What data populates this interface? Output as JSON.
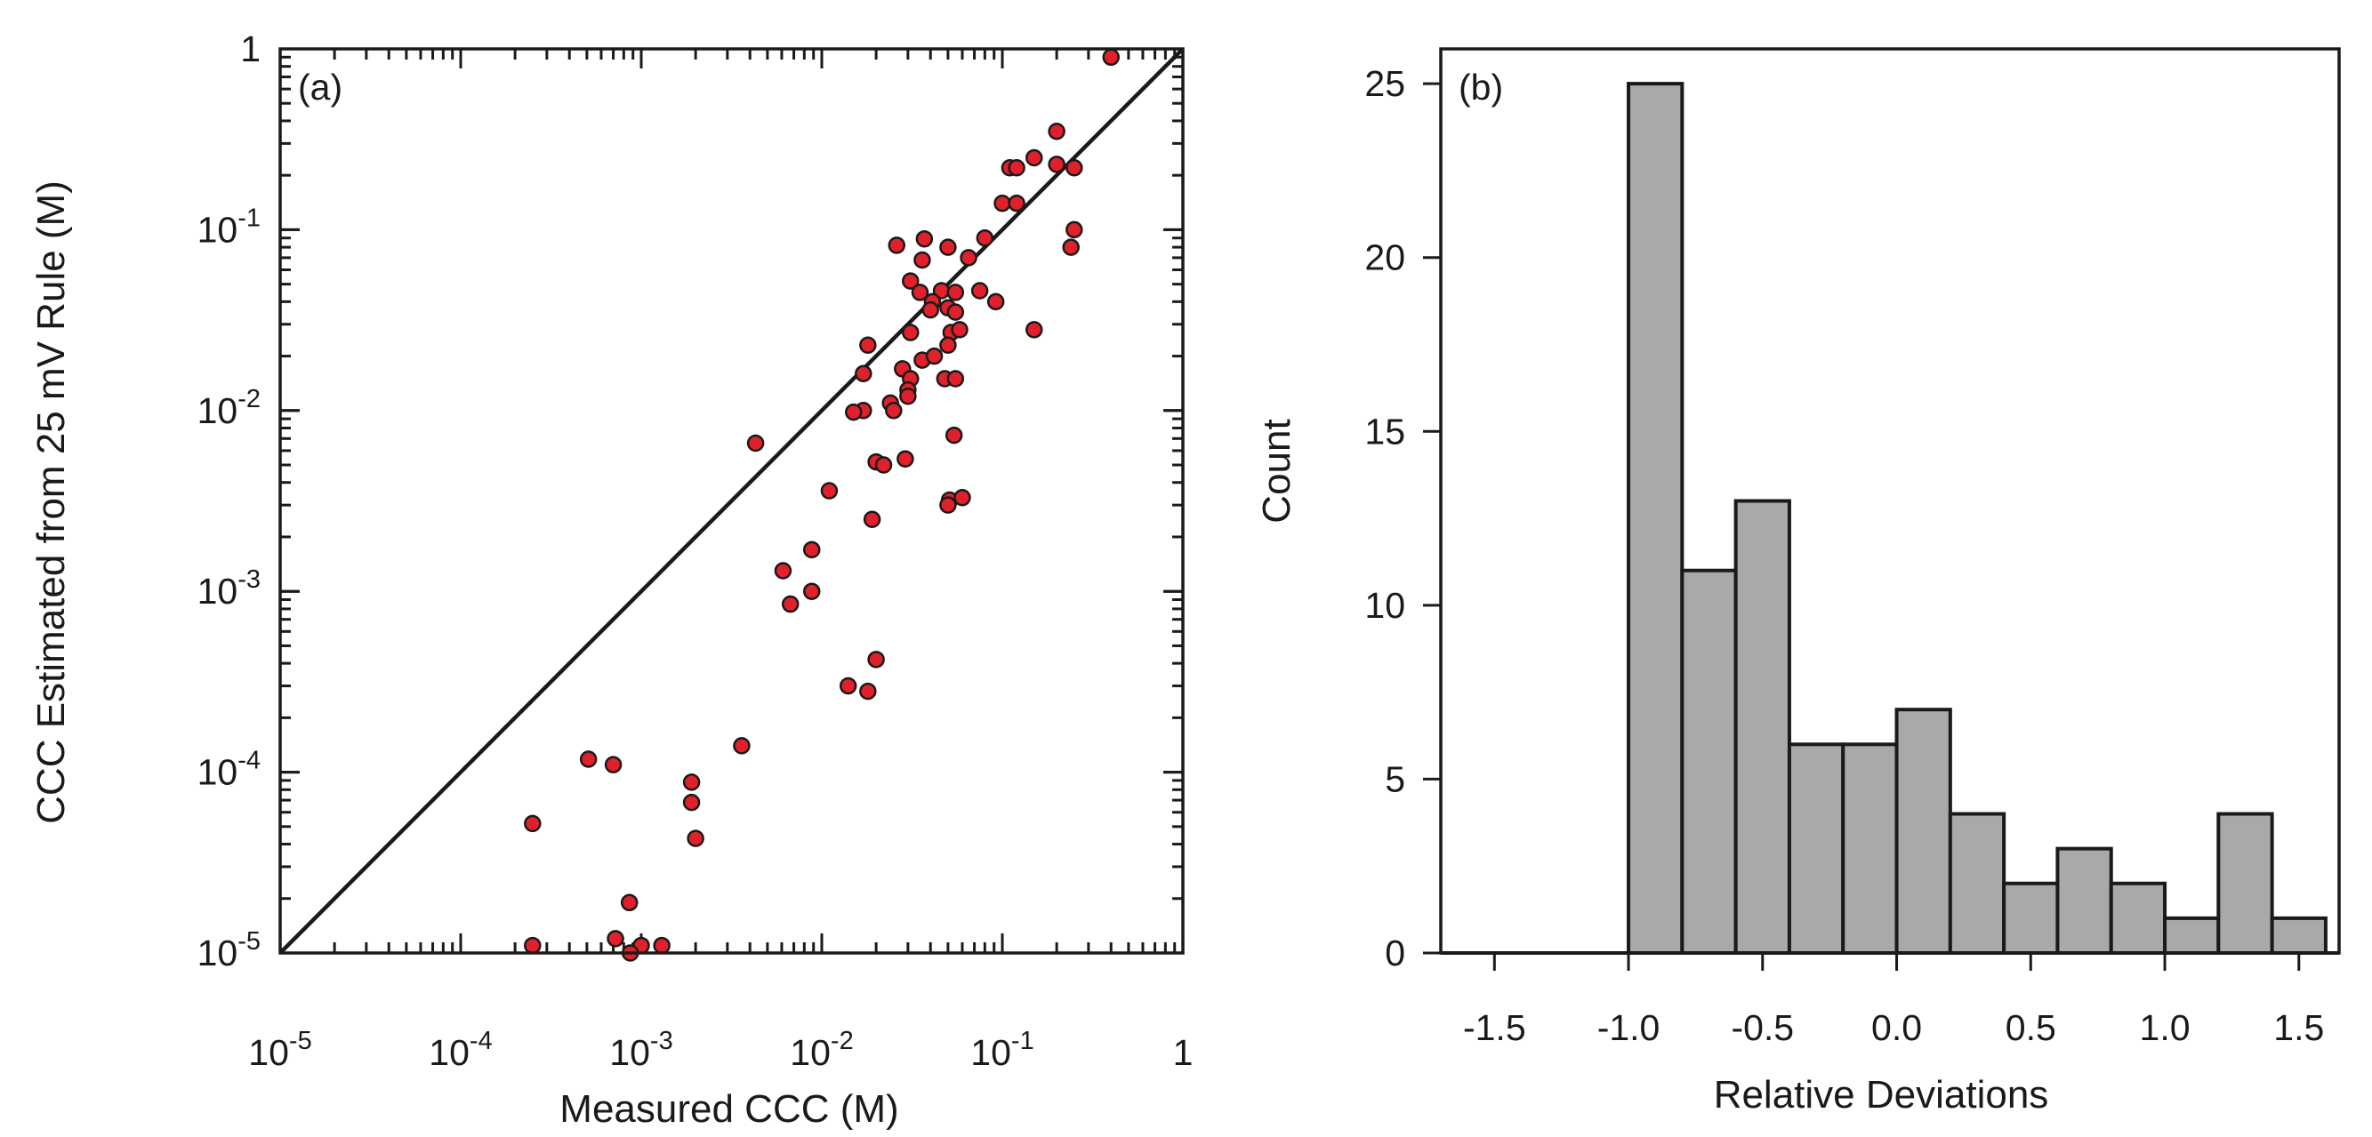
{
  "chart_data": [
    {
      "type": "scatter",
      "panel_label": "(a)",
      "xlabel": "Measured CCC (M)",
      "ylabel": "CCC Estimated from 25 mV Rule (M)",
      "xscale": "log",
      "yscale": "log",
      "xlim": [
        1e-05,
        1
      ],
      "ylim": [
        1e-05,
        1
      ],
      "x_tick_labels": [
        {
          "value": 1e-05,
          "base": "10",
          "exp": "-5"
        },
        {
          "value": 0.0001,
          "base": "10",
          "exp": "-4"
        },
        {
          "value": 0.001,
          "base": "10",
          "exp": "-3"
        },
        {
          "value": 0.01,
          "base": "10",
          "exp": "-2"
        },
        {
          "value": 0.1,
          "base": "10",
          "exp": "-1"
        },
        {
          "value": 1,
          "base": "1",
          "exp": ""
        }
      ],
      "y_tick_labels": [
        {
          "value": 1e-05,
          "base": "10",
          "exp": "-5"
        },
        {
          "value": 0.0001,
          "base": "10",
          "exp": "-4"
        },
        {
          "value": 0.001,
          "base": "10",
          "exp": "-3"
        },
        {
          "value": 0.01,
          "base": "10",
          "exp": "-2"
        },
        {
          "value": 0.1,
          "base": "10",
          "exp": "-1"
        },
        {
          "value": 1,
          "base": "1",
          "exp": ""
        }
      ],
      "reference_line": {
        "type": "y=x"
      },
      "marker_color": "#e0202a",
      "points": [
        [
          0.4,
          0.9
        ],
        [
          0.2,
          0.35
        ],
        [
          0.15,
          0.25
        ],
        [
          0.11,
          0.22
        ],
        [
          0.12,
          0.22
        ],
        [
          0.2,
          0.23
        ],
        [
          0.25,
          0.22
        ],
        [
          0.1,
          0.14
        ],
        [
          0.12,
          0.14
        ],
        [
          0.25,
          0.1
        ],
        [
          0.24,
          0.08
        ],
        [
          0.08,
          0.09
        ],
        [
          0.065,
          0.07
        ],
        [
          0.05,
          0.08
        ],
        [
          0.037,
          0.089
        ],
        [
          0.026,
          0.082
        ],
        [
          0.036,
          0.068
        ],
        [
          0.031,
          0.052
        ],
        [
          0.035,
          0.045
        ],
        [
          0.046,
          0.046
        ],
        [
          0.055,
          0.045
        ],
        [
          0.075,
          0.046
        ],
        [
          0.092,
          0.04
        ],
        [
          0.041,
          0.04
        ],
        [
          0.04,
          0.036
        ],
        [
          0.05,
          0.037
        ],
        [
          0.055,
          0.035
        ],
        [
          0.031,
          0.027
        ],
        [
          0.052,
          0.027
        ],
        [
          0.058,
          0.028
        ],
        [
          0.15,
          0.028
        ],
        [
          0.05,
          0.023
        ],
        [
          0.018,
          0.023
        ],
        [
          0.036,
          0.019
        ],
        [
          0.042,
          0.02
        ],
        [
          0.028,
          0.017
        ],
        [
          0.017,
          0.016
        ],
        [
          0.048,
          0.015
        ],
        [
          0.055,
          0.015
        ],
        [
          0.031,
          0.015
        ],
        [
          0.03,
          0.013
        ],
        [
          0.03,
          0.012
        ],
        [
          0.024,
          0.011
        ],
        [
          0.025,
          0.01
        ],
        [
          0.017,
          0.01
        ],
        [
          0.015,
          0.0098
        ],
        [
          0.0043,
          0.0066
        ],
        [
          0.054,
          0.0073
        ],
        [
          0.02,
          0.0052
        ],
        [
          0.022,
          0.005
        ],
        [
          0.029,
          0.0054
        ],
        [
          0.011,
          0.0036
        ],
        [
          0.051,
          0.0032
        ],
        [
          0.06,
          0.0033
        ],
        [
          0.05,
          0.003
        ],
        [
          0.019,
          0.0025
        ],
        [
          0.0088,
          0.0017
        ],
        [
          0.0061,
          0.0013
        ],
        [
          0.0088,
          0.001
        ],
        [
          0.0067,
          0.00085
        ],
        [
          0.02,
          0.00042
        ],
        [
          0.014,
          0.0003
        ],
        [
          0.018,
          0.00028
        ],
        [
          0.0036,
          0.00014
        ],
        [
          0.00051,
          0.000118
        ],
        [
          0.0007,
          0.00011
        ],
        [
          0.0019,
          8.8e-05
        ],
        [
          0.0019,
          6.8e-05
        ],
        [
          0.002,
          4.3e-05
        ],
        [
          0.00025,
          5.2e-05
        ],
        [
          0.00086,
          1.9e-05
        ],
        [
          0.00025,
          1.1e-05
        ],
        [
          0.00072,
          1.2e-05
        ],
        [
          0.001,
          1.1e-05
        ],
        [
          0.0013,
          1.1e-05
        ],
        [
          0.00087,
          1e-05
        ]
      ]
    },
    {
      "type": "bar",
      "subtype": "histogram",
      "panel_label": "(b)",
      "xlabel": "Relative Deviations",
      "ylabel": "Count",
      "xlim": [
        -1.7,
        1.65
      ],
      "ylim": [
        0,
        26
      ],
      "x_tick_labels": [
        "-1.5",
        "-1.0",
        "-0.5",
        "0.0",
        "0.5",
        "1.0",
        "1.5"
      ],
      "x_ticks": [
        -1.5,
        -1.0,
        -0.5,
        0.0,
        0.5,
        1.0,
        1.5
      ],
      "y_tick_labels": [
        "0",
        "5",
        "10",
        "15",
        "20",
        "25"
      ],
      "y_ticks": [
        0,
        5,
        10,
        15,
        20,
        25
      ],
      "bar_color": "#a9a9ac",
      "bins": [
        {
          "start": -1.0,
          "end": -0.8,
          "count": 25
        },
        {
          "start": -0.8,
          "end": -0.6,
          "count": 11
        },
        {
          "start": -0.6,
          "end": -0.4,
          "count": 13
        },
        {
          "start": -0.4,
          "end": -0.2,
          "count": 6
        },
        {
          "start": -0.2,
          "end": 0.0,
          "count": 6
        },
        {
          "start": 0.0,
          "end": 0.2,
          "count": 7
        },
        {
          "start": 0.2,
          "end": 0.4,
          "count": 4
        },
        {
          "start": 0.4,
          "end": 0.6,
          "count": 2
        },
        {
          "start": 0.6,
          "end": 0.8,
          "count": 3
        },
        {
          "start": 0.8,
          "end": 1.0,
          "count": 2
        },
        {
          "start": 1.0,
          "end": 1.2,
          "count": 1
        },
        {
          "start": 1.2,
          "end": 1.4,
          "count": 4
        },
        {
          "start": 1.4,
          "end": 1.6,
          "count": 1
        }
      ]
    }
  ]
}
